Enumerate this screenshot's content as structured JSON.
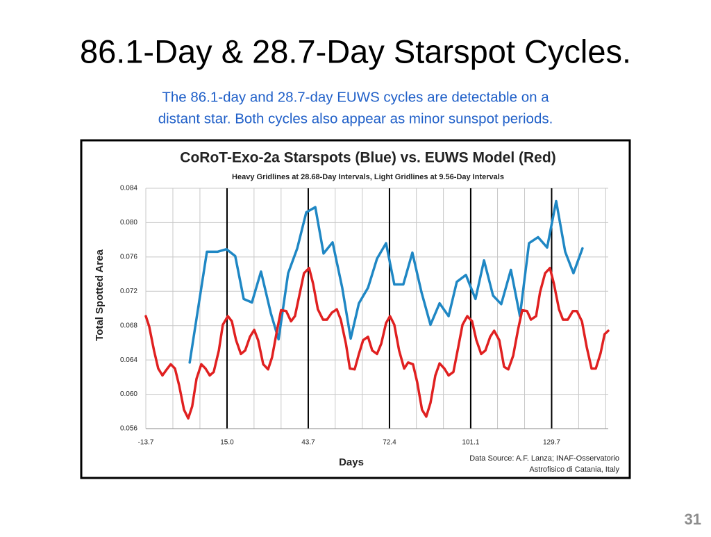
{
  "slide": {
    "title": "86.1-Day & 28.7-Day Starspot Cycles.",
    "subtitle_lines": [
      "The 86.1-day and 28.7-day EUWS cycles are detectable on a",
      "distant star.  Both cycles also appear as minor sunspot periods."
    ],
    "page_number": "31"
  },
  "chart_data": {
    "type": "line",
    "title": "CoRoT-Exo-2a Starspots (Blue) vs. EUWS Model (Red)",
    "subtitle": "Heavy Gridlines at 28.68-Day Intervals, Light Gridlines at 9.56-Day Intervals",
    "x_label": "Days",
    "y_label": "Total Spotted Area",
    "source_lines": [
      "Data Source:  A.F. Lanza;   INAF-Osservatorio",
      "Astrofisico di Catania, Italy"
    ],
    "xlim": [
      -13.7,
      149.7
    ],
    "ylim": [
      0.056,
      0.084
    ],
    "xticks": [
      -13.7,
      {
        "value": 15,
        "label": "15.0"
      },
      43.7,
      72.4,
      101.1,
      129.7
    ],
    "minor_xgrid": [
      -4.14,
      5.42,
      24.54,
      34.1,
      53.22,
      62.78,
      81.9,
      91.46,
      110.58,
      120.14,
      139.26,
      148.82
    ],
    "yticks": [
      0.056,
      {
        "value": 0.06,
        "label": "0.060"
      },
      0.064,
      0.068,
      0.072,
      0.076,
      {
        "value": 0.08,
        "label": "0.080"
      },
      0.084
    ],
    "major_grid_color": "#000000",
    "minor_grid_color": "#c8c8c8",
    "series": [
      {
        "color": "#1f87c4",
        "x": [
          1.8,
          7.9,
          11.6,
          14.8,
          17.9,
          20.9,
          23.8,
          27.0,
          30.5,
          33.2,
          36.6,
          39.8,
          43.0,
          46.2,
          49.1,
          52.3,
          55.7,
          58.7,
          61.6,
          64.8,
          68.0,
          71.2,
          74.1,
          77.3,
          80.5,
          83.7,
          86.9,
          90.1,
          93.3,
          96.2,
          99.4,
          102.8,
          105.8,
          109.0,
          111.9,
          115.3,
          118.5,
          121.7,
          124.9,
          128.1,
          131.3,
          134.5,
          137.4,
          140.6
        ],
        "values": [
          0.0637,
          0.0766,
          0.0766,
          0.0769,
          0.0761,
          0.0711,
          0.0707,
          0.0743,
          0.0694,
          0.0664,
          0.0741,
          0.077,
          0.0812,
          0.0818,
          0.0764,
          0.0777,
          0.0724,
          0.0665,
          0.0706,
          0.0724,
          0.0758,
          0.0776,
          0.0728,
          0.0728,
          0.0765,
          0.0719,
          0.0681,
          0.0706,
          0.0691,
          0.0731,
          0.0739,
          0.0711,
          0.0756,
          0.0715,
          0.0705,
          0.0745,
          0.0691,
          0.0776,
          0.0783,
          0.0771,
          0.0825,
          0.0766,
          0.0741,
          0.077
        ]
      },
      {
        "color": "#e02020",
        "x": [
          -13.7,
          -12.5,
          -10.8,
          -9.3,
          -7.8,
          -6.3,
          -4.9,
          -3.4,
          -1.9,
          -0.2,
          1.3,
          2.7,
          4.2,
          5.9,
          7.4,
          8.9,
          10.3,
          12.1,
          13.5,
          15.3,
          16.7,
          18.2,
          19.9,
          21.4,
          23.1,
          24.6,
          26.0,
          27.8,
          29.5,
          30.9,
          32.7,
          34.1,
          35.9,
          37.6,
          39.0,
          40.8,
          42.2,
          44.0,
          45.4,
          47.1,
          48.9,
          50.3,
          52.0,
          53.8,
          55.2,
          57.0,
          58.4,
          60.1,
          61.6,
          63.1,
          64.8,
          66.3,
          68.0,
          69.5,
          71.2,
          72.6,
          74.1,
          75.8,
          77.6,
          79.0,
          80.7,
          82.2,
          83.9,
          85.4,
          86.9,
          88.6,
          90.1,
          91.8,
          93.3,
          95.0,
          96.7,
          98.2,
          99.9,
          101.6,
          103.1,
          104.8,
          106.3,
          108.0,
          109.4,
          111.2,
          112.9,
          114.4,
          116.1,
          117.8,
          119.3,
          121.0,
          122.4,
          124.2,
          125.6,
          127.4,
          129.1,
          130.5,
          132.3,
          133.7,
          135.4,
          137.2,
          138.6,
          140.4,
          142.1,
          143.8,
          145.3,
          147.0,
          148.4,
          149.7
        ],
        "values": [
          0.0691,
          0.0679,
          0.0651,
          0.063,
          0.0622,
          0.0629,
          0.0635,
          0.063,
          0.061,
          0.0582,
          0.0572,
          0.0586,
          0.0618,
          0.0635,
          0.063,
          0.0622,
          0.0626,
          0.0651,
          0.0681,
          0.0691,
          0.0685,
          0.0663,
          0.0647,
          0.0651,
          0.0667,
          0.0675,
          0.0663,
          0.0635,
          0.0629,
          0.0643,
          0.0675,
          0.0698,
          0.0697,
          0.0685,
          0.0691,
          0.0719,
          0.0741,
          0.0747,
          0.0729,
          0.0699,
          0.0687,
          0.0687,
          0.0695,
          0.0699,
          0.0687,
          0.0659,
          0.063,
          0.0629,
          0.0647,
          0.0663,
          0.0667,
          0.0651,
          0.0647,
          0.0659,
          0.0683,
          0.0691,
          0.0681,
          0.0651,
          0.063,
          0.0637,
          0.0635,
          0.0614,
          0.0582,
          0.0574,
          0.059,
          0.0622,
          0.0636,
          0.063,
          0.0622,
          0.0626,
          0.0655,
          0.0681,
          0.0691,
          0.0685,
          0.0663,
          0.0647,
          0.0651,
          0.0667,
          0.0674,
          0.0663,
          0.0632,
          0.0629,
          0.0645,
          0.0675,
          0.0698,
          0.0697,
          0.0687,
          0.0691,
          0.0719,
          0.0741,
          0.0747,
          0.0729,
          0.0699,
          0.0687,
          0.0687,
          0.0697,
          0.0697,
          0.0685,
          0.0655,
          0.063,
          0.063,
          0.0648,
          0.067,
          0.0674
        ]
      }
    ]
  }
}
